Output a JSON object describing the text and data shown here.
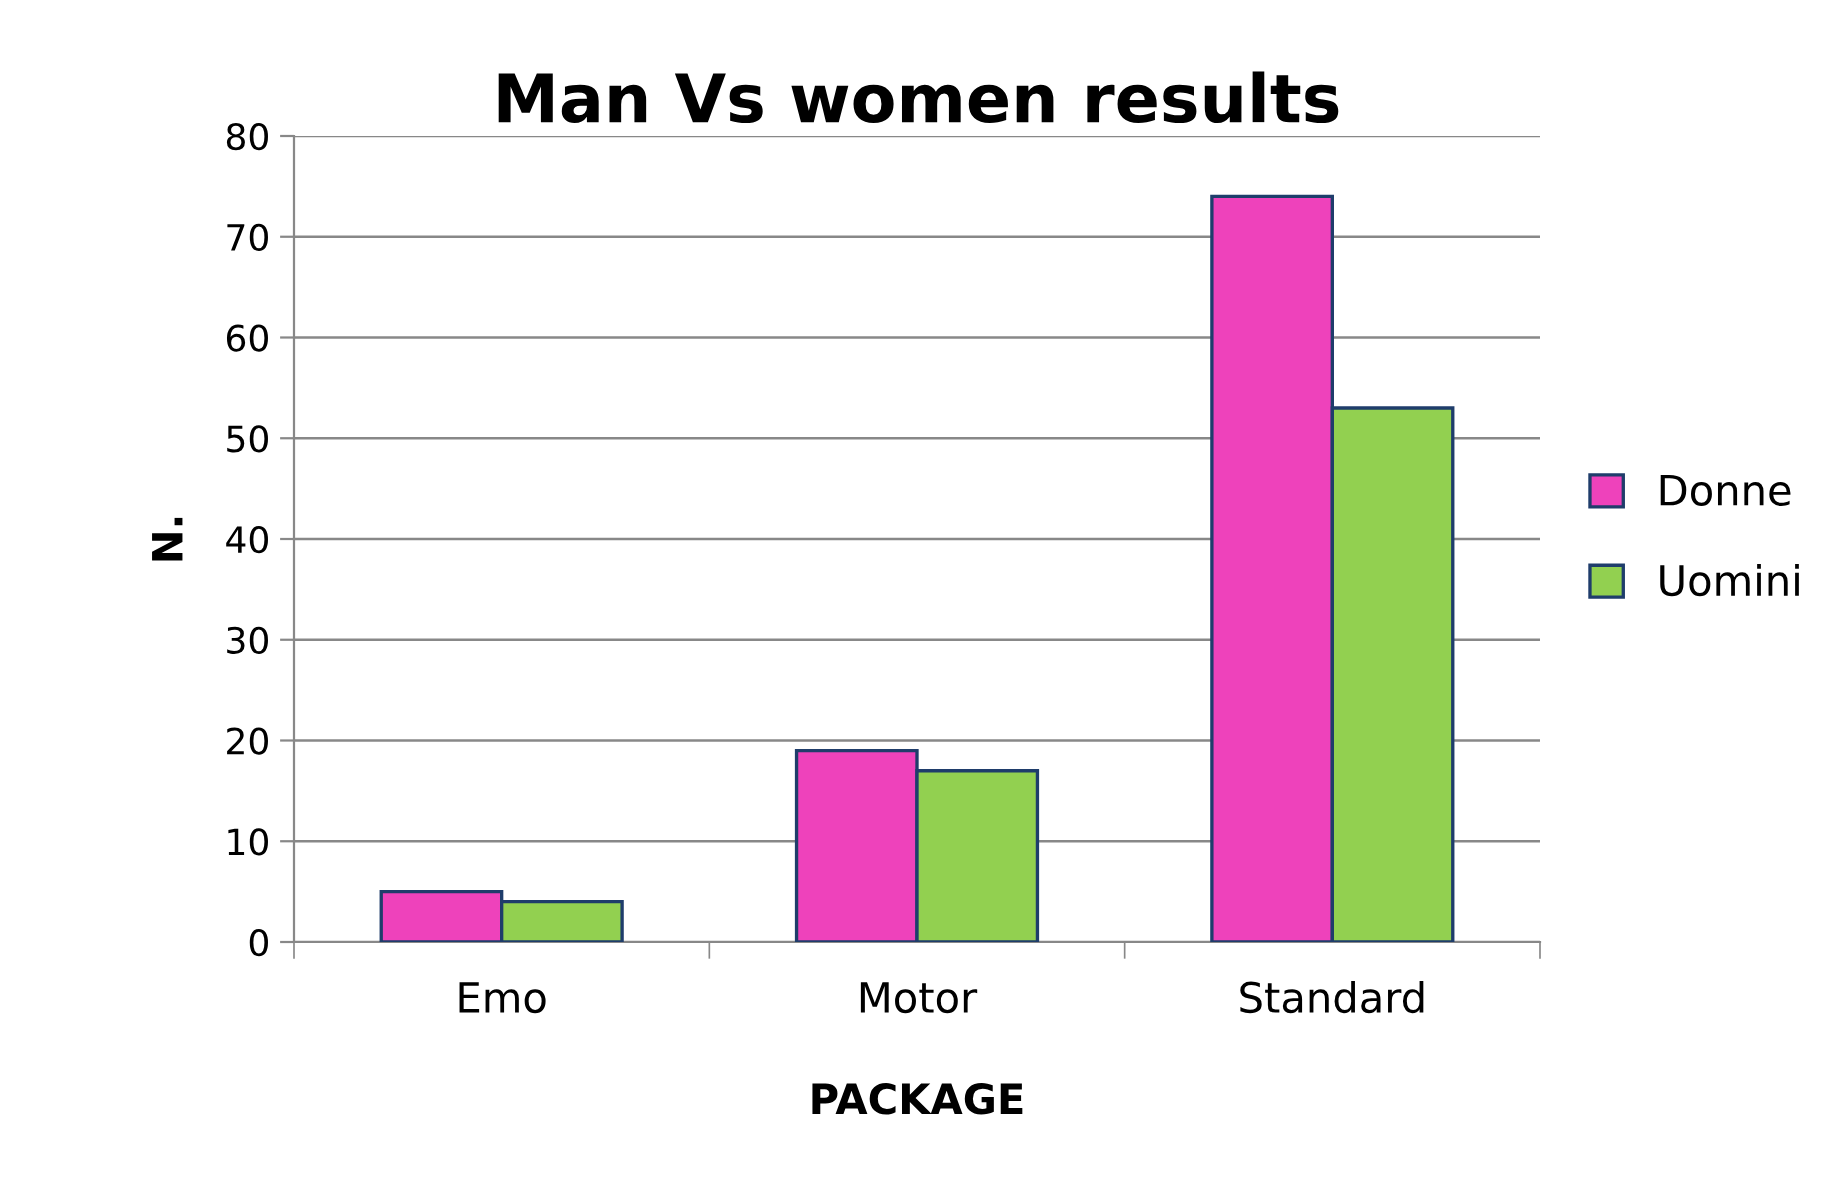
{
  "chart_data": {
    "type": "bar",
    "title": "Man Vs women results",
    "xlabel": "PACKAGE",
    "ylabel": "N.",
    "categories": [
      "Emo",
      "Motor",
      "Standard"
    ],
    "series": [
      {
        "name": "Donne",
        "color": "#ee42bb",
        "values": [
          5,
          19,
          74
        ]
      },
      {
        "name": "Uomini",
        "color": "#92d050",
        "values": [
          4,
          17,
          53
        ]
      }
    ],
    "ylim": [
      0,
      80
    ],
    "yticks": [
      0,
      10,
      20,
      30,
      40,
      50,
      60,
      70,
      80
    ],
    "grid": "y",
    "legend": "right"
  }
}
